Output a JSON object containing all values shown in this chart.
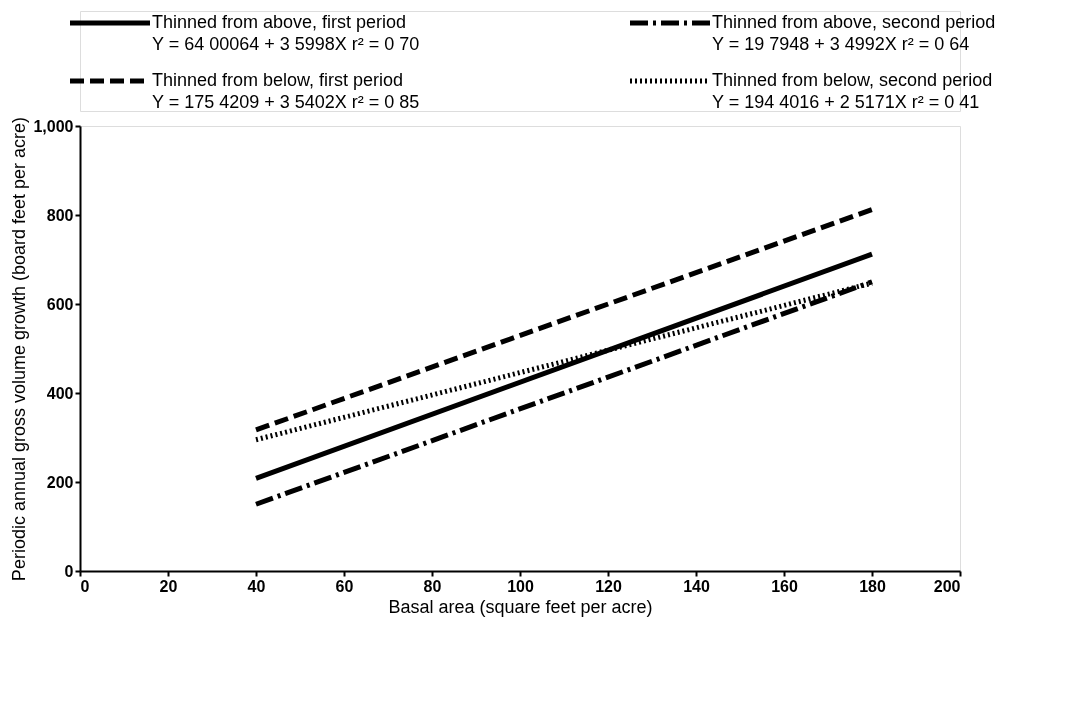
{
  "chart_data": {
    "type": "line",
    "xlabel": "Basal area  (square feet per acre)",
    "ylabel": "Periodic annual gross volume growth (board feet per acre)",
    "x": [
      40,
      180
    ],
    "series": [
      {
        "name": "Thinned from above, first period",
        "color": "#000000",
        "line_style": "solid",
        "values": [
          208,
          712
        ]
      },
      {
        "name": "Thinned from above, second period",
        "color": "#000000",
        "line_style": "dashdot",
        "values": [
          150,
          650
        ]
      },
      {
        "name": "Thinned from below, first period",
        "color": "#000000",
        "line_style": "dashed",
        "values": [
          317,
          812
        ]
      },
      {
        "name": "Thinned from below, second period",
        "color": "#000000",
        "line_style": "dotted",
        "values": [
          295,
          647
        ]
      }
    ],
    "annotations": [
      "Y = 64 00064 + 3 5998X    r² = 0 70",
      "Y = 19 7948 + 3 4992X       r² = 0 64",
      "Y = 175 4209 + 3 5402X    r² = 0 85",
      "Y = 194 4016 + 2 5171X    r² = 0 41"
    ],
    "xlim": [
      0,
      200
    ],
    "xticks": [
      0,
      20,
      40,
      60,
      80,
      100,
      120,
      140,
      160,
      180,
      200
    ],
    "ylim": [
      0,
      1000
    ],
    "yticks": [
      0,
      200,
      400,
      600,
      800,
      {
        "value": 1000,
        "label": "1,000"
      }
    ],
    "grid": false,
    "legend": "top",
    "marker": "none"
  }
}
